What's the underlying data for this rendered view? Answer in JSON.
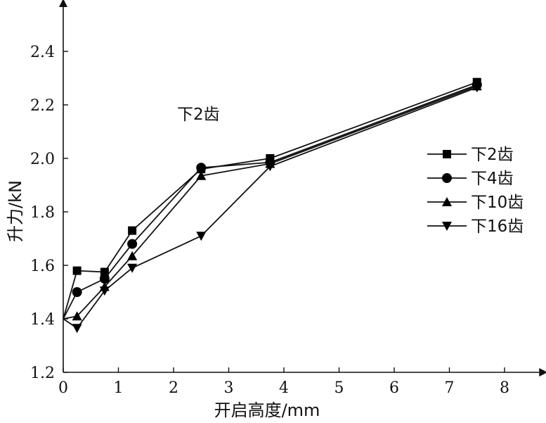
{
  "chart_data": {
    "type": "line",
    "annotation": "下2齿",
    "xlabel": "开启高度/mm",
    "ylabel": "升力/kN",
    "xlim": [
      0,
      8.5
    ],
    "ylim": [
      1.2,
      2.55
    ],
    "x_ticks": [
      0,
      1,
      2,
      3,
      4,
      5,
      6,
      7,
      8
    ],
    "y_ticks": [
      1.2,
      1.4,
      1.6,
      1.8,
      2.0,
      2.2,
      2.4
    ],
    "y_tick_labels": [
      "1.2",
      "1.4",
      "1.6",
      "1.8",
      "2.0",
      "2.2",
      "2.4"
    ],
    "grid": false,
    "legend_position": "right",
    "series": [
      {
        "name": "下2齿",
        "marker": "square",
        "points": [
          [
            0,
            1.4
          ],
          [
            0.25,
            1.58
          ],
          [
            0.75,
            1.575
          ],
          [
            1.25,
            1.73
          ],
          [
            2.5,
            1.96
          ],
          [
            3.75,
            2.0
          ],
          [
            7.5,
            2.285
          ]
        ]
      },
      {
        "name": "下4齿",
        "marker": "circle",
        "points": [
          [
            0,
            1.4
          ],
          [
            0.25,
            1.5
          ],
          [
            0.75,
            1.55
          ],
          [
            1.25,
            1.68
          ],
          [
            2.5,
            1.965
          ],
          [
            3.75,
            1.985
          ],
          [
            7.5,
            2.275
          ]
        ]
      },
      {
        "name": "下10齿",
        "marker": "triangle-up",
        "points": [
          [
            0,
            1.4
          ],
          [
            0.25,
            1.41
          ],
          [
            0.75,
            1.52
          ],
          [
            1.25,
            1.635
          ],
          [
            2.5,
            1.935
          ],
          [
            3.75,
            1.98
          ],
          [
            7.5,
            2.27
          ]
        ]
      },
      {
        "name": "下16齿",
        "marker": "triangle-down",
        "points": [
          [
            0,
            1.4
          ],
          [
            0.25,
            1.365
          ],
          [
            0.75,
            1.505
          ],
          [
            1.25,
            1.59
          ],
          [
            2.5,
            1.71
          ],
          [
            3.75,
            1.97
          ],
          [
            7.5,
            2.265
          ]
        ]
      }
    ]
  }
}
